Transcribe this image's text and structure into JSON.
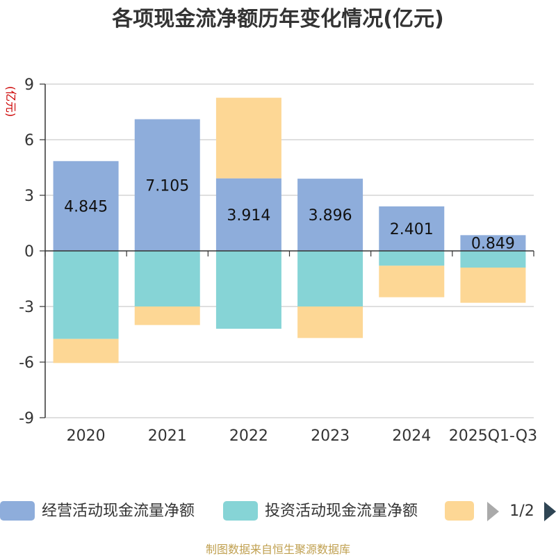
{
  "chart_data": {
    "type": "bar",
    "stacked": true,
    "title": "各项现金流净额历年变化情况(亿元)",
    "ylabel": "(亿元)",
    "ylim": [
      -9,
      9
    ],
    "yticks": [
      9,
      6,
      3,
      0,
      -3,
      -6,
      -9
    ],
    "ytick_labels": [
      "9",
      "6",
      "3",
      "0",
      "-3",
      "-6",
      "-9"
    ],
    "categories": [
      "2020",
      "2021",
      "2022",
      "2023",
      "2024",
      "2025Q1-Q3"
    ],
    "series": [
      {
        "name": "经营活动现金流量净额",
        "color": "#8eaddb",
        "values": [
          4.845,
          7.105,
          3.914,
          3.896,
          2.401,
          0.849
        ],
        "labels": [
          "4.845",
          "7.105",
          "3.914",
          "3.896",
          "2.401",
          "0.849"
        ]
      },
      {
        "name": "投资活动现金流量净额",
        "color": "#86d4d6",
        "values": [
          -4.75,
          -3.0,
          -4.2,
          -3.0,
          -0.8,
          -0.9
        ]
      },
      {
        "name": "",
        "color": "#fdd795",
        "values": [
          -1.3,
          -1.0,
          4.35,
          -1.7,
          -1.7,
          -1.9
        ]
      }
    ],
    "legend": {
      "position": "bottom",
      "page": "1/2"
    },
    "grid": true
  },
  "source": "制图数据来自恒生聚源数据库"
}
